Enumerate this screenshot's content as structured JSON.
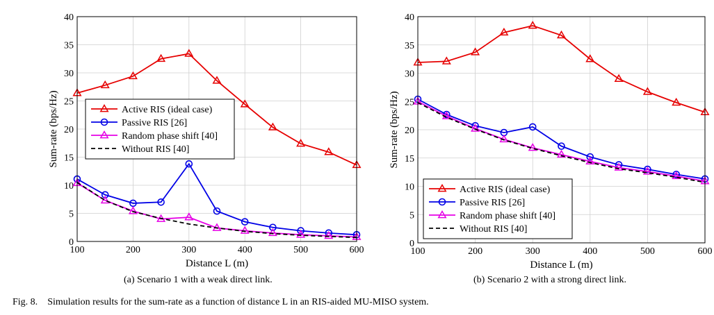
{
  "figure": {
    "label": "Fig. 8.",
    "caption": "Simulation results for the sum-rate as a function of distance L in an RIS-aided MU-MISO system."
  },
  "chart_data": [
    {
      "type": "line",
      "caption": "(a) Scenario 1 with a weak direct link.",
      "xlabel": "Distance L (m)",
      "ylabel": "Sum-rate (bps/Hz)",
      "xlim": [
        100,
        600
      ],
      "ylim": [
        0,
        40
      ],
      "xticks": [
        100,
        200,
        300,
        400,
        500,
        600
      ],
      "yticks": [
        0,
        5,
        10,
        15,
        20,
        25,
        30,
        35,
        40
      ],
      "grid": true,
      "legend_position": "middle-left",
      "x": [
        100,
        150,
        200,
        250,
        300,
        350,
        400,
        450,
        500,
        550,
        600
      ],
      "series": [
        {
          "name": "Active RIS (ideal case)",
          "color": "#e60000",
          "marker": "triangle",
          "dash": "solid",
          "values": [
            26.4,
            27.8,
            29.4,
            32.5,
            33.4,
            28.6,
            24.4,
            20.3,
            17.4,
            15.9,
            13.6
          ]
        },
        {
          "name": "Passive RIS [26]",
          "color": "#0000e6",
          "marker": "circle",
          "dash": "solid",
          "values": [
            11.1,
            8.3,
            6.8,
            7.0,
            13.8,
            5.4,
            3.5,
            2.5,
            1.9,
            1.5,
            1.2
          ]
        },
        {
          "name": "Random phase shift [40]",
          "color": "#e600e6",
          "marker": "triangle",
          "dash": "solid",
          "values": [
            10.4,
            7.3,
            5.4,
            4.0,
            4.3,
            2.4,
            1.9,
            1.5,
            1.2,
            1.0,
            0.8
          ]
        },
        {
          "name": "Without RIS [40]",
          "color": "#000000",
          "marker": "none",
          "dash": "dashed",
          "values": [
            10.5,
            7.3,
            5.3,
            4.1,
            3.1,
            2.4,
            1.8,
            1.4,
            1.1,
            0.9,
            0.7
          ]
        }
      ]
    },
    {
      "type": "line",
      "caption": "(b) Scenario 2 with a strong direct link.",
      "xlabel": "Distance L (m)",
      "ylabel": "Sum-rate (bps/Hz)",
      "xlim": [
        100,
        600
      ],
      "ylim": [
        0,
        40
      ],
      "xticks": [
        100,
        200,
        300,
        400,
        500,
        600
      ],
      "yticks": [
        0,
        5,
        10,
        15,
        20,
        25,
        30,
        35,
        40
      ],
      "grid": true,
      "legend_position": "bottom-left",
      "x": [
        100,
        150,
        200,
        250,
        300,
        350,
        400,
        450,
        500,
        550,
        600
      ],
      "series": [
        {
          "name": "Active RIS (ideal case)",
          "color": "#e60000",
          "marker": "triangle",
          "dash": "solid",
          "values": [
            31.9,
            32.1,
            33.7,
            37.2,
            38.4,
            36.7,
            32.5,
            29.0,
            26.7,
            24.8,
            23.1
          ]
        },
        {
          "name": "Passive RIS [26]",
          "color": "#0000e6",
          "marker": "circle",
          "dash": "solid",
          "values": [
            25.4,
            22.7,
            20.7,
            19.5,
            20.5,
            17.1,
            15.2,
            13.8,
            13.0,
            12.1,
            11.3
          ]
        },
        {
          "name": "Random phase shift [40]",
          "color": "#e600e6",
          "marker": "triangle",
          "dash": "solid",
          "values": [
            25.0,
            22.4,
            20.2,
            18.3,
            16.8,
            15.6,
            14.4,
            13.3,
            12.6,
            11.8,
            10.9
          ]
        },
        {
          "name": "Without RIS [40]",
          "color": "#000000",
          "marker": "none",
          "dash": "dashed",
          "values": [
            24.8,
            22.2,
            20.1,
            18.2,
            16.7,
            15.4,
            14.2,
            13.1,
            12.4,
            11.6,
            10.7
          ]
        }
      ]
    }
  ]
}
